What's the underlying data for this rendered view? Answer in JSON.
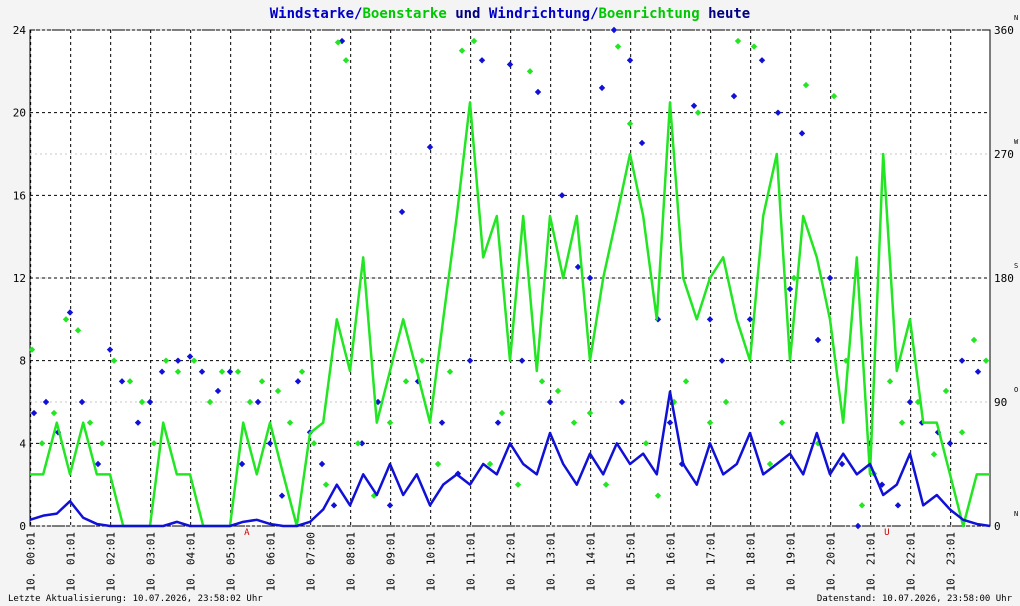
{
  "chart_data": {
    "type": "line",
    "title": [
      "Windstarke/",
      "Boenstarke",
      " und ",
      "Windrichtung/",
      "Boenrichtung",
      " heute"
    ],
    "title_colors": [
      "#0000c8",
      "#00c800",
      "#000080",
      "#0000c8",
      "#00c800",
      "#000080"
    ],
    "xlim": [
      0,
      24
    ],
    "xticks": [
      {
        "value": 0.0167,
        "label": "10. 00:01"
      },
      {
        "value": 1.0167,
        "label": "10. 01:01"
      },
      {
        "value": 2.0167,
        "label": "10. 02:01"
      },
      {
        "value": 3.0167,
        "label": "10. 03:01"
      },
      {
        "value": 4.0167,
        "label": "10. 04:01"
      },
      {
        "value": 5.0167,
        "label": "10. 05:01"
      },
      {
        "value": 6.0167,
        "label": "10. 06:01"
      },
      {
        "value": 7.0167,
        "label": "10. 07:00"
      },
      {
        "value": 8.0167,
        "label": "10. 08:01"
      },
      {
        "value": 9.0167,
        "label": "10. 09:01"
      },
      {
        "value": 10.0167,
        "label": "10. 10:01"
      },
      {
        "value": 11.0167,
        "label": "10. 11:01"
      },
      {
        "value": 12.0167,
        "label": "10. 12:01"
      },
      {
        "value": 13.0167,
        "label": "10. 13:01"
      },
      {
        "value": 14.0167,
        "label": "10. 14:01"
      },
      {
        "value": 15.0167,
        "label": "10. 15:01"
      },
      {
        "value": 16.0167,
        "label": "10. 16:01"
      },
      {
        "value": 17.0167,
        "label": "10. 17:01"
      },
      {
        "value": 18.0167,
        "label": "10. 18:01"
      },
      {
        "value": 19.0167,
        "label": "10. 19:01"
      },
      {
        "value": 20.0167,
        "label": "10. 20:01"
      },
      {
        "value": 21.0167,
        "label": "10. 21:01"
      },
      {
        "value": 22.0167,
        "label": "10. 22:01"
      },
      {
        "value": 23.0167,
        "label": "10. 23:01"
      }
    ],
    "ylim": [
      0,
      24
    ],
    "yticks": [
      0,
      4,
      8,
      12,
      16,
      20,
      24
    ],
    "y2lim": [
      0,
      360
    ],
    "y2ticks": [
      0,
      90,
      180,
      270,
      360
    ],
    "y2tick_letters": [
      "N",
      "O",
      "S",
      "W",
      "N"
    ],
    "grid": true,
    "x": [
      0,
      0.33,
      0.67,
      1,
      1.33,
      1.67,
      2,
      2.33,
      2.67,
      3,
      3.33,
      3.67,
      4,
      4.33,
      4.67,
      5,
      5.33,
      5.67,
      6,
      6.33,
      6.67,
      7,
      7.33,
      7.67,
      8,
      8.33,
      8.67,
      9,
      9.33,
      9.67,
      10,
      10.33,
      10.67,
      11,
      11.33,
      11.67,
      12,
      12.33,
      12.67,
      13,
      13.33,
      13.67,
      14,
      14.33,
      14.67,
      15,
      15.33,
      15.67,
      16,
      16.33,
      16.67,
      17,
      17.33,
      17.67,
      18,
      18.33,
      18.67,
      19,
      19.33,
      19.67,
      20,
      20.33,
      20.67,
      21,
      21.33,
      21.67,
      22,
      22.33,
      22.67,
      23,
      23.33,
      23.67,
      24
    ],
    "series": [
      {
        "type": "line",
        "color": "#22e622",
        "values": [
          2.5,
          2.5,
          5,
          2.5,
          5,
          2.5,
          2.5,
          0,
          0,
          0,
          5,
          2.5,
          2.5,
          0,
          0,
          0,
          5,
          2.5,
          5,
          2.5,
          0,
          4.5,
          5,
          10,
          7.5,
          13,
          5,
          7.5,
          10,
          7.5,
          5,
          10,
          15,
          20.5,
          13,
          15,
          8,
          15,
          7.5,
          15,
          12,
          15,
          8,
          12,
          15,
          18,
          15,
          10,
          20.5,
          12,
          10,
          12,
          13,
          10,
          8,
          15,
          18,
          8,
          15,
          13,
          10,
          5,
          13,
          2.5,
          18,
          7.5,
          10,
          5,
          5,
          2.5,
          0,
          2.5,
          2.5
        ]
      },
      {
        "type": "line",
        "color": "#1010d8",
        "values": [
          0.3,
          0.5,
          0.6,
          1.2,
          0.4,
          0.1,
          0,
          0,
          0,
          0,
          0,
          0.2,
          0,
          0,
          0,
          0,
          0.2,
          0.3,
          0.1,
          0,
          0,
          0.2,
          0.8,
          2,
          1,
          2.5,
          1.5,
          3,
          1.5,
          2.5,
          1,
          2,
          2.5,
          2,
          3,
          2.5,
          4,
          3,
          2.5,
          4.5,
          3,
          2,
          3.5,
          2.5,
          4,
          3,
          3.5,
          2.5,
          6.5,
          3,
          2,
          4,
          2.5,
          3,
          4.5,
          2.5,
          3,
          3.5,
          2.5,
          4.5,
          2.5,
          3.5,
          2.5,
          3,
          1.5,
          2,
          3.5,
          1,
          1.5,
          0.8,
          0.3,
          0.1,
          0
        ]
      },
      {
        "type": "scatter",
        "axis": "y2",
        "color": "#1010d8",
        "x": [
          0.1,
          0.4,
          0.7,
          1,
          1.3,
          1.7,
          2,
          2.3,
          2.7,
          3,
          3.3,
          3.7,
          4,
          4.3,
          4.7,
          5,
          5.3,
          5.7,
          6,
          6.3,
          6.7,
          7,
          7.3,
          7.6,
          7.8,
          8.3,
          8.7,
          9,
          9.3,
          9.7,
          10,
          10.3,
          10.7,
          11,
          11.3,
          11.7,
          12,
          12.3,
          12.7,
          13,
          13.3,
          13.7,
          14,
          14.3,
          14.6,
          14.8,
          15,
          15.3,
          15.7,
          16,
          16.3,
          16.6,
          17,
          17.3,
          17.6,
          18,
          18.3,
          18.7,
          19,
          19.3,
          19.7,
          20,
          20.3,
          20.7,
          21,
          21.3,
          21.7,
          22,
          22.3,
          22.7,
          23,
          23.3,
          23.7
        ],
        "values": [
          82,
          90,
          68,
          155,
          90,
          45,
          128,
          105,
          75,
          90,
          112,
          120,
          123,
          112,
          98,
          112,
          45,
          90,
          60,
          22,
          105,
          68,
          45,
          15,
          352,
          60,
          90,
          15,
          228,
          105,
          275,
          75,
          38,
          120,
          338,
          75,
          335,
          120,
          315,
          90,
          240,
          188,
          180,
          318,
          360,
          90,
          338,
          278,
          150,
          75,
          45,
          305,
          150,
          120,
          312,
          150,
          338,
          300,
          172,
          285,
          135,
          180,
          45,
          0,
          60,
          30,
          15,
          90,
          75,
          68,
          60,
          120,
          112
        ]
      },
      {
        "type": "scatter",
        "axis": "y2",
        "color": "#22e622",
        "x": [
          0.05,
          0.3,
          0.6,
          0.9,
          1.2,
          1.5,
          1.8,
          2.1,
          2.5,
          2.8,
          3.1,
          3.4,
          3.7,
          4.1,
          4.5,
          4.8,
          5.2,
          5.5,
          5.8,
          6.2,
          6.5,
          6.8,
          7.1,
          7.4,
          7.7,
          7.9,
          8.2,
          8.6,
          9,
          9.4,
          9.8,
          10.2,
          10.5,
          10.8,
          11.1,
          11.5,
          11.8,
          12.2,
          12.5,
          12.8,
          13.2,
          13.6,
          14,
          14.4,
          14.7,
          15,
          15.4,
          15.7,
          16.1,
          16.4,
          16.7,
          17,
          17.4,
          17.7,
          18.1,
          18.5,
          18.8,
          19.1,
          19.4,
          19.7,
          20.1,
          20.4,
          20.8,
          21.1,
          21.5,
          21.8,
          22.2,
          22.6,
          22.9,
          23.3,
          23.6,
          23.9
        ],
        "values": [
          128,
          60,
          82,
          150,
          142,
          75,
          60,
          120,
          105,
          90,
          60,
          120,
          112,
          120,
          90,
          112,
          112,
          90,
          105,
          98,
          75,
          112,
          60,
          30,
          351,
          338,
          60,
          22,
          75,
          105,
          120,
          45,
          112,
          345,
          352,
          45,
          82,
          30,
          330,
          105,
          98,
          75,
          82,
          30,
          348,
          292,
          60,
          22,
          90,
          105,
          300,
          75,
          90,
          352,
          348,
          45,
          75,
          180,
          320,
          60,
          312,
          120,
          15,
          38,
          105,
          75,
          90,
          52,
          98,
          68,
          135,
          120
        ]
      }
    ],
    "annotations": [
      {
        "label": "A",
        "x": 5.42
      },
      {
        "label": "U",
        "x": 21.42
      }
    ],
    "footer_left": "Letzte Aktualisierung: 10.07.2026, 23:58:02 Uhr",
    "footer_right": "Datenstand: 10.07.2026, 23:58:00 Uhr"
  }
}
